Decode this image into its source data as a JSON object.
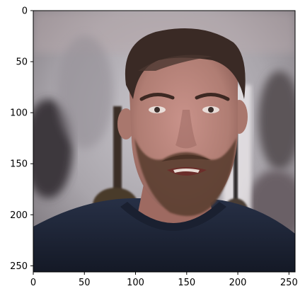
{
  "figure": {
    "subject": "Person facing camera",
    "x_ticks": [
      "0",
      "50",
      "100",
      "150",
      "200",
      "250"
    ],
    "y_ticks": [
      "0",
      "50",
      "100",
      "150",
      "200",
      "250"
    ],
    "x_tick_values": [
      0,
      50,
      100,
      150,
      200,
      250
    ],
    "y_tick_values": [
      0,
      50,
      100,
      150,
      200,
      250
    ],
    "image_extent": [
      0,
      256
    ]
  },
  "colors": {
    "background_wall": "#a7a3a8",
    "background_dark": "#3a353a",
    "skin": "#b07d73",
    "hair": "#3a2a25",
    "beard": "#5a3d30",
    "shirt": "#1e2534",
    "axis": "#000000"
  }
}
